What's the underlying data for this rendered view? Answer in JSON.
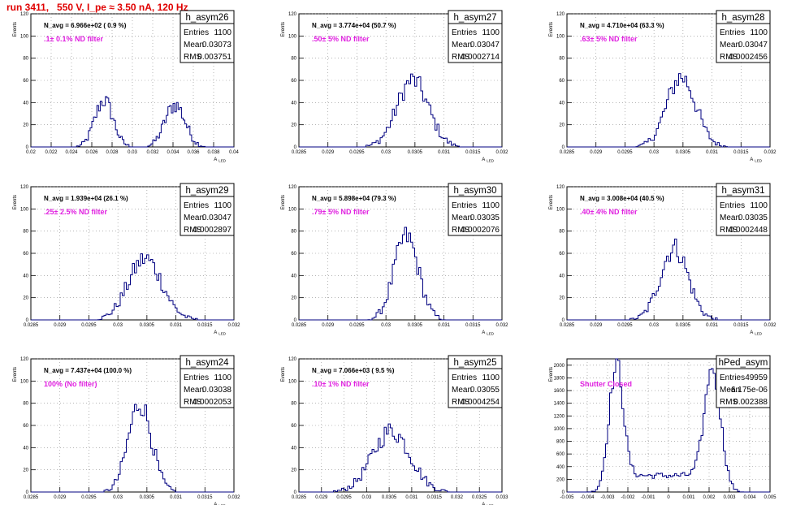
{
  "header": {
    "title": "run 3411,   550 V, I_pe ≈ 3.50 nA, 120 Hz"
  },
  "chart_data": [
    {
      "type": "histogram",
      "name": "h_asym26",
      "ylabel": "Events",
      "xlabel": "A_LED",
      "xlim": [
        0.02,
        0.04
      ],
      "ylim": [
        0,
        120
      ],
      "xticks": [
        "0.02",
        "0.022",
        "0.024",
        "0.026",
        "0.028",
        "0.03",
        "0.032",
        "0.034",
        "0.036",
        "0.038",
        "0.04"
      ],
      "yticks": [
        "0",
        "20",
        "40",
        "60",
        "80",
        "100",
        "120"
      ],
      "navg": "N_avg = 6.966e+02 ( 0.9 %)",
      "filter": ".1± 0.1% ND filter",
      "stats": {
        "title": "h_asym26",
        "entries": "1100",
        "mean": "0.03073",
        "rms": "0.003751"
      },
      "peaks": [
        [
          0.0272,
          0.0009,
          42
        ],
        [
          0.0342,
          0.001,
          38
        ]
      ],
      "bins": 120
    },
    {
      "type": "histogram",
      "name": "h_asym27",
      "ylabel": "Events",
      "xlabel": "A_LED",
      "xlim": [
        0.0285,
        0.032
      ],
      "ylim": [
        0,
        120
      ],
      "xticks": [
        "0.0285",
        "0.029",
        "0.0295",
        "0.03",
        "0.0305",
        "0.031",
        "0.0315",
        "0.032"
      ],
      "yticks": [
        "0",
        "20",
        "40",
        "60",
        "80",
        "100",
        "120"
      ],
      "navg": "N_avg = 3.774e+04 (50.7 %)",
      "filter": ".50± 5% ND filter",
      "stats": {
        "title": "h_asym27",
        "entries": "1100",
        "mean": "0.03047",
        "rms": "0.0002714"
      },
      "peaks": [
        [
          0.03046,
          0.00027,
          60
        ]
      ],
      "bins": 100
    },
    {
      "type": "histogram",
      "name": "h_asym28",
      "ylabel": "Events",
      "xlabel": "A_LED",
      "xlim": [
        0.0285,
        0.032
      ],
      "ylim": [
        0,
        120
      ],
      "xticks": [
        "0.0285",
        "0.029",
        "0.0295",
        "0.03",
        "0.0305",
        "0.031",
        "0.0315",
        "0.032"
      ],
      "yticks": [
        "0",
        "20",
        "40",
        "60",
        "80",
        "100",
        "120"
      ],
      "navg": "N_avg = 4.710e+04 (63.3 %)",
      "filter": ".63± 5% ND filter",
      "stats": {
        "title": "h_asym28",
        "entries": "1100",
        "mean": "0.03047",
        "rms": "0.0002456"
      },
      "peaks": [
        [
          0.03047,
          0.00025,
          63
        ]
      ],
      "bins": 100
    },
    {
      "type": "histogram",
      "name": "h_asym29",
      "ylabel": "Events",
      "xlabel": "A_LED",
      "xlim": [
        0.0285,
        0.032
      ],
      "ylim": [
        0,
        120
      ],
      "xticks": [
        "0.0285",
        "0.029",
        "0.0295",
        "0.03",
        "0.0305",
        "0.031",
        "0.0315",
        "0.032"
      ],
      "yticks": [
        "0",
        "20",
        "40",
        "60",
        "80",
        "100",
        "120"
      ],
      "navg": "N_avg = 1.939e+04 (26.1 %)",
      "filter": ".25± 2.5% ND filter",
      "stats": {
        "title": "h_asym29",
        "entries": "1100",
        "mean": "0.03047",
        "rms": "0.0002897"
      },
      "peaks": [
        [
          0.03047,
          0.00029,
          55
        ]
      ],
      "bins": 100
    },
    {
      "type": "histogram",
      "name": "h_asym30",
      "ylabel": "Events",
      "xlabel": "A_LED",
      "xlim": [
        0.0285,
        0.032
      ],
      "ylim": [
        0,
        120
      ],
      "xticks": [
        "0.0285",
        "0.029",
        "0.0295",
        "0.03",
        "0.0305",
        "0.031",
        "0.0315",
        "0.032"
      ],
      "yticks": [
        "0",
        "20",
        "40",
        "60",
        "80",
        "100",
        "120"
      ],
      "navg": "N_avg = 5.898e+04 (79.3 %)",
      "filter": ".79± 5% ND filter",
      "stats": {
        "title": "h_asym30",
        "entries": "1100",
        "mean": "0.03035",
        "rms": "0.0002076"
      },
      "peaks": [
        [
          0.03035,
          0.00021,
          75
        ]
      ],
      "bins": 100
    },
    {
      "type": "histogram",
      "name": "h_asym31",
      "ylabel": "Events",
      "xlabel": "A_LED",
      "xlim": [
        0.0285,
        0.032
      ],
      "ylim": [
        0,
        120
      ],
      "xticks": [
        "0.0285",
        "0.029",
        "0.0295",
        "0.03",
        "0.0305",
        "0.031",
        "0.0315",
        "0.032"
      ],
      "yticks": [
        "0",
        "20",
        "40",
        "60",
        "80",
        "100",
        "120"
      ],
      "navg": "N_avg = 3.008e+04 (40.5 %)",
      "filter": ".40± 4% ND filter",
      "stats": {
        "title": "h_asym31",
        "entries": "1100",
        "mean": "0.03035",
        "rms": "0.0002448"
      },
      "peaks": [
        [
          0.03035,
          0.00024,
          65
        ]
      ],
      "bins": 100
    },
    {
      "type": "histogram",
      "name": "h_asym24",
      "ylabel": "Events",
      "xlabel": "A_LED",
      "xlim": [
        0.0285,
        0.032
      ],
      "ylim": [
        0,
        120
      ],
      "xticks": [
        "0.0285",
        "0.029",
        "0.0295",
        "0.03",
        "0.0305",
        "0.031",
        "0.0315",
        "0.032"
      ],
      "yticks": [
        "0",
        "20",
        "40",
        "60",
        "80",
        "100",
        "120"
      ],
      "navg": "N_avg = 7.437e+04 (100.0 %)",
      "filter": "100% (No filter)",
      "stats": {
        "title": "h_asym24",
        "entries": "1100",
        "mean": "0.03038",
        "rms": "0.0002053"
      },
      "peaks": [
        [
          0.03038,
          0.0002,
          80
        ]
      ],
      "bins": 100
    },
    {
      "type": "histogram",
      "name": "h_asym25",
      "ylabel": "Events",
      "xlabel": "A_LED",
      "xlim": [
        0.0285,
        0.033
      ],
      "ylim": [
        0,
        120
      ],
      "xticks": [
        "0.0285",
        "0.029",
        "0.0295",
        "0.03",
        "0.0305",
        "0.031",
        "0.0315",
        "0.032",
        "0.0325",
        "0.033"
      ],
      "yticks": [
        "0",
        "20",
        "40",
        "60",
        "80",
        "100",
        "120"
      ],
      "navg": "N_avg = 7.066e+03 ( 9.5 %)",
      "filter": ".10± 1% ND filter",
      "stats": {
        "title": "h_asym25",
        "entries": "1100",
        "mean": "0.03055",
        "rms": "0.0004254"
      },
      "peaks": [
        [
          0.03055,
          0.00042,
          55
        ]
      ],
      "bins": 100
    },
    {
      "type": "histogram",
      "name": "hPed_asym",
      "ylabel": "Events",
      "xlabel": "",
      "xlim": [
        -0.005,
        0.005
      ],
      "ylim": [
        0,
        2100
      ],
      "xticks": [
        "-0.005",
        "-0.004",
        "-0.003",
        "-0.002",
        "-0.001",
        "0",
        "0.001",
        "0.002",
        "0.003",
        "0.004",
        "0.005"
      ],
      "yticks": [
        "0",
        "200",
        "400",
        "600",
        "800",
        "1000",
        "1200",
        "1400",
        "1600",
        "1800",
        "2000"
      ],
      "navg": "",
      "filter": "Shutter Closed",
      "stats": {
        "title": "hPed_asym",
        "entries": "49959",
        "mean": "-6.175e-06",
        "rms": "0.002388"
      },
      "peaks": [
        [
          -0.0026,
          0.00035,
          1900
        ],
        [
          0.0022,
          0.0004,
          1800
        ]
      ],
      "valley": 260,
      "bins": 100
    }
  ]
}
